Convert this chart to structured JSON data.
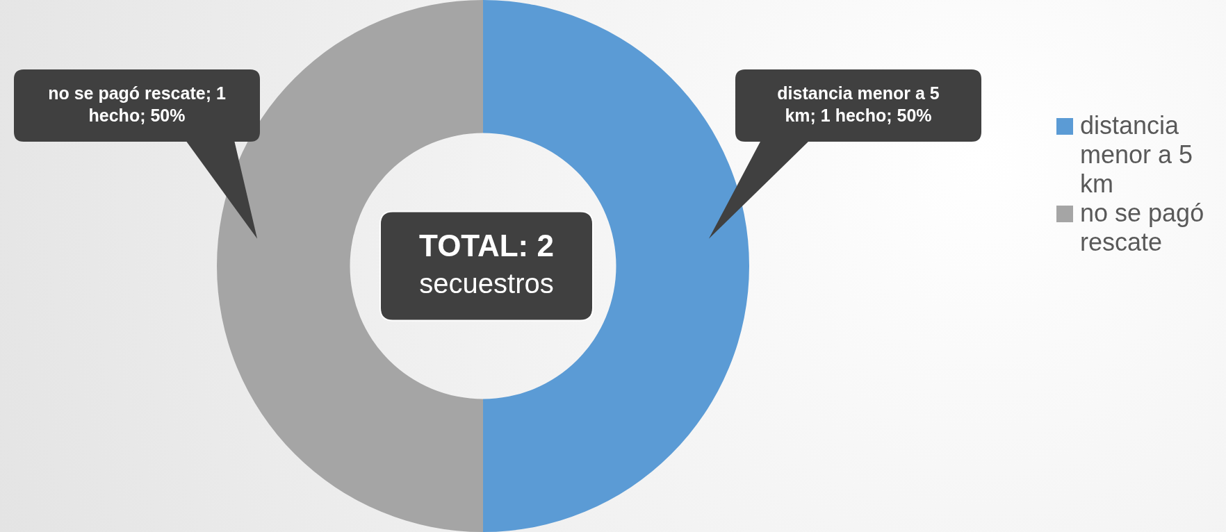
{
  "chart_data": {
    "type": "donut",
    "categories": [
      "distancia menor a 5 km",
      "no se pagó rescate"
    ],
    "values": [
      1,
      1
    ],
    "colors": [
      "#5b9bd5",
      "#a5a5a5"
    ],
    "value_labels": [
      "distancia menor a 5 km; 1 hecho; 50%",
      "no se pagó rescate; 1 hecho; 50%"
    ],
    "annotations": [
      "TOTAL: 2",
      "secuestros"
    ],
    "legend": "right"
  }
}
